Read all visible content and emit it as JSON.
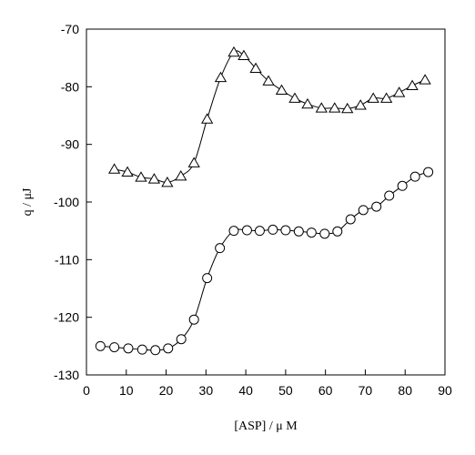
{
  "chart_data": {
    "type": "line",
    "xlabel": "[ASP] / μ M",
    "ylabel": "q / μJ",
    "xlim": [
      0,
      90
    ],
    "ylim": [
      -130,
      -70
    ],
    "x_ticks": [
      0,
      10,
      20,
      30,
      40,
      50,
      60,
      70,
      80,
      90
    ],
    "y_ticks": [
      -130,
      -120,
      -110,
      -100,
      -90,
      -80,
      -70
    ],
    "x_tick_labels": [
      "0",
      "10",
      "20",
      "30",
      "40",
      "50",
      "60",
      "70",
      "80",
      "90"
    ],
    "y_tick_labels": [
      "-130",
      "-120",
      "-110",
      "-100",
      "-90",
      "-80",
      "-70"
    ],
    "grid": false,
    "legend": "none",
    "series": [
      {
        "marker": "triangle",
        "color": "#000000",
        "x": [
          7.0,
          10.3,
          13.7,
          17.0,
          20.3,
          23.7,
          27.0,
          30.3,
          33.7,
          37.0,
          39.5,
          42.5,
          45.7,
          49.0,
          52.3,
          55.5,
          59.0,
          62.3,
          65.5,
          68.8,
          72.0,
          75.3,
          78.5,
          81.8,
          85.0
        ],
        "y": [
          -94.3,
          -94.8,
          -95.7,
          -96.0,
          -96.6,
          -95.5,
          -93.2,
          -85.6,
          -78.4,
          -74.0,
          -74.6,
          -76.8,
          -79.0,
          -80.6,
          -82.0,
          -83.0,
          -83.7,
          -83.7,
          -83.8,
          -83.2,
          -82.0,
          -82.0,
          -81.0,
          -79.8,
          -78.8
        ]
      },
      {
        "marker": "circle",
        "color": "#000000",
        "x": [
          3.5,
          7.0,
          10.5,
          14.0,
          17.3,
          20.5,
          23.8,
          27.0,
          30.3,
          33.5,
          37.0,
          40.3,
          43.5,
          46.8,
          50.0,
          53.3,
          56.5,
          59.8,
          63.0,
          66.3,
          69.5,
          72.8,
          76.0,
          79.3,
          82.5,
          85.8
        ],
        "y": [
          -125.0,
          -125.2,
          -125.4,
          -125.6,
          -125.7,
          -125.4,
          -123.8,
          -120.4,
          -113.2,
          -108.0,
          -105.0,
          -104.9,
          -105.0,
          -104.8,
          -104.9,
          -105.1,
          -105.3,
          -105.5,
          -105.1,
          -103.0,
          -101.4,
          -100.8,
          -98.9,
          -97.2,
          -95.6,
          -94.8
        ]
      }
    ]
  }
}
